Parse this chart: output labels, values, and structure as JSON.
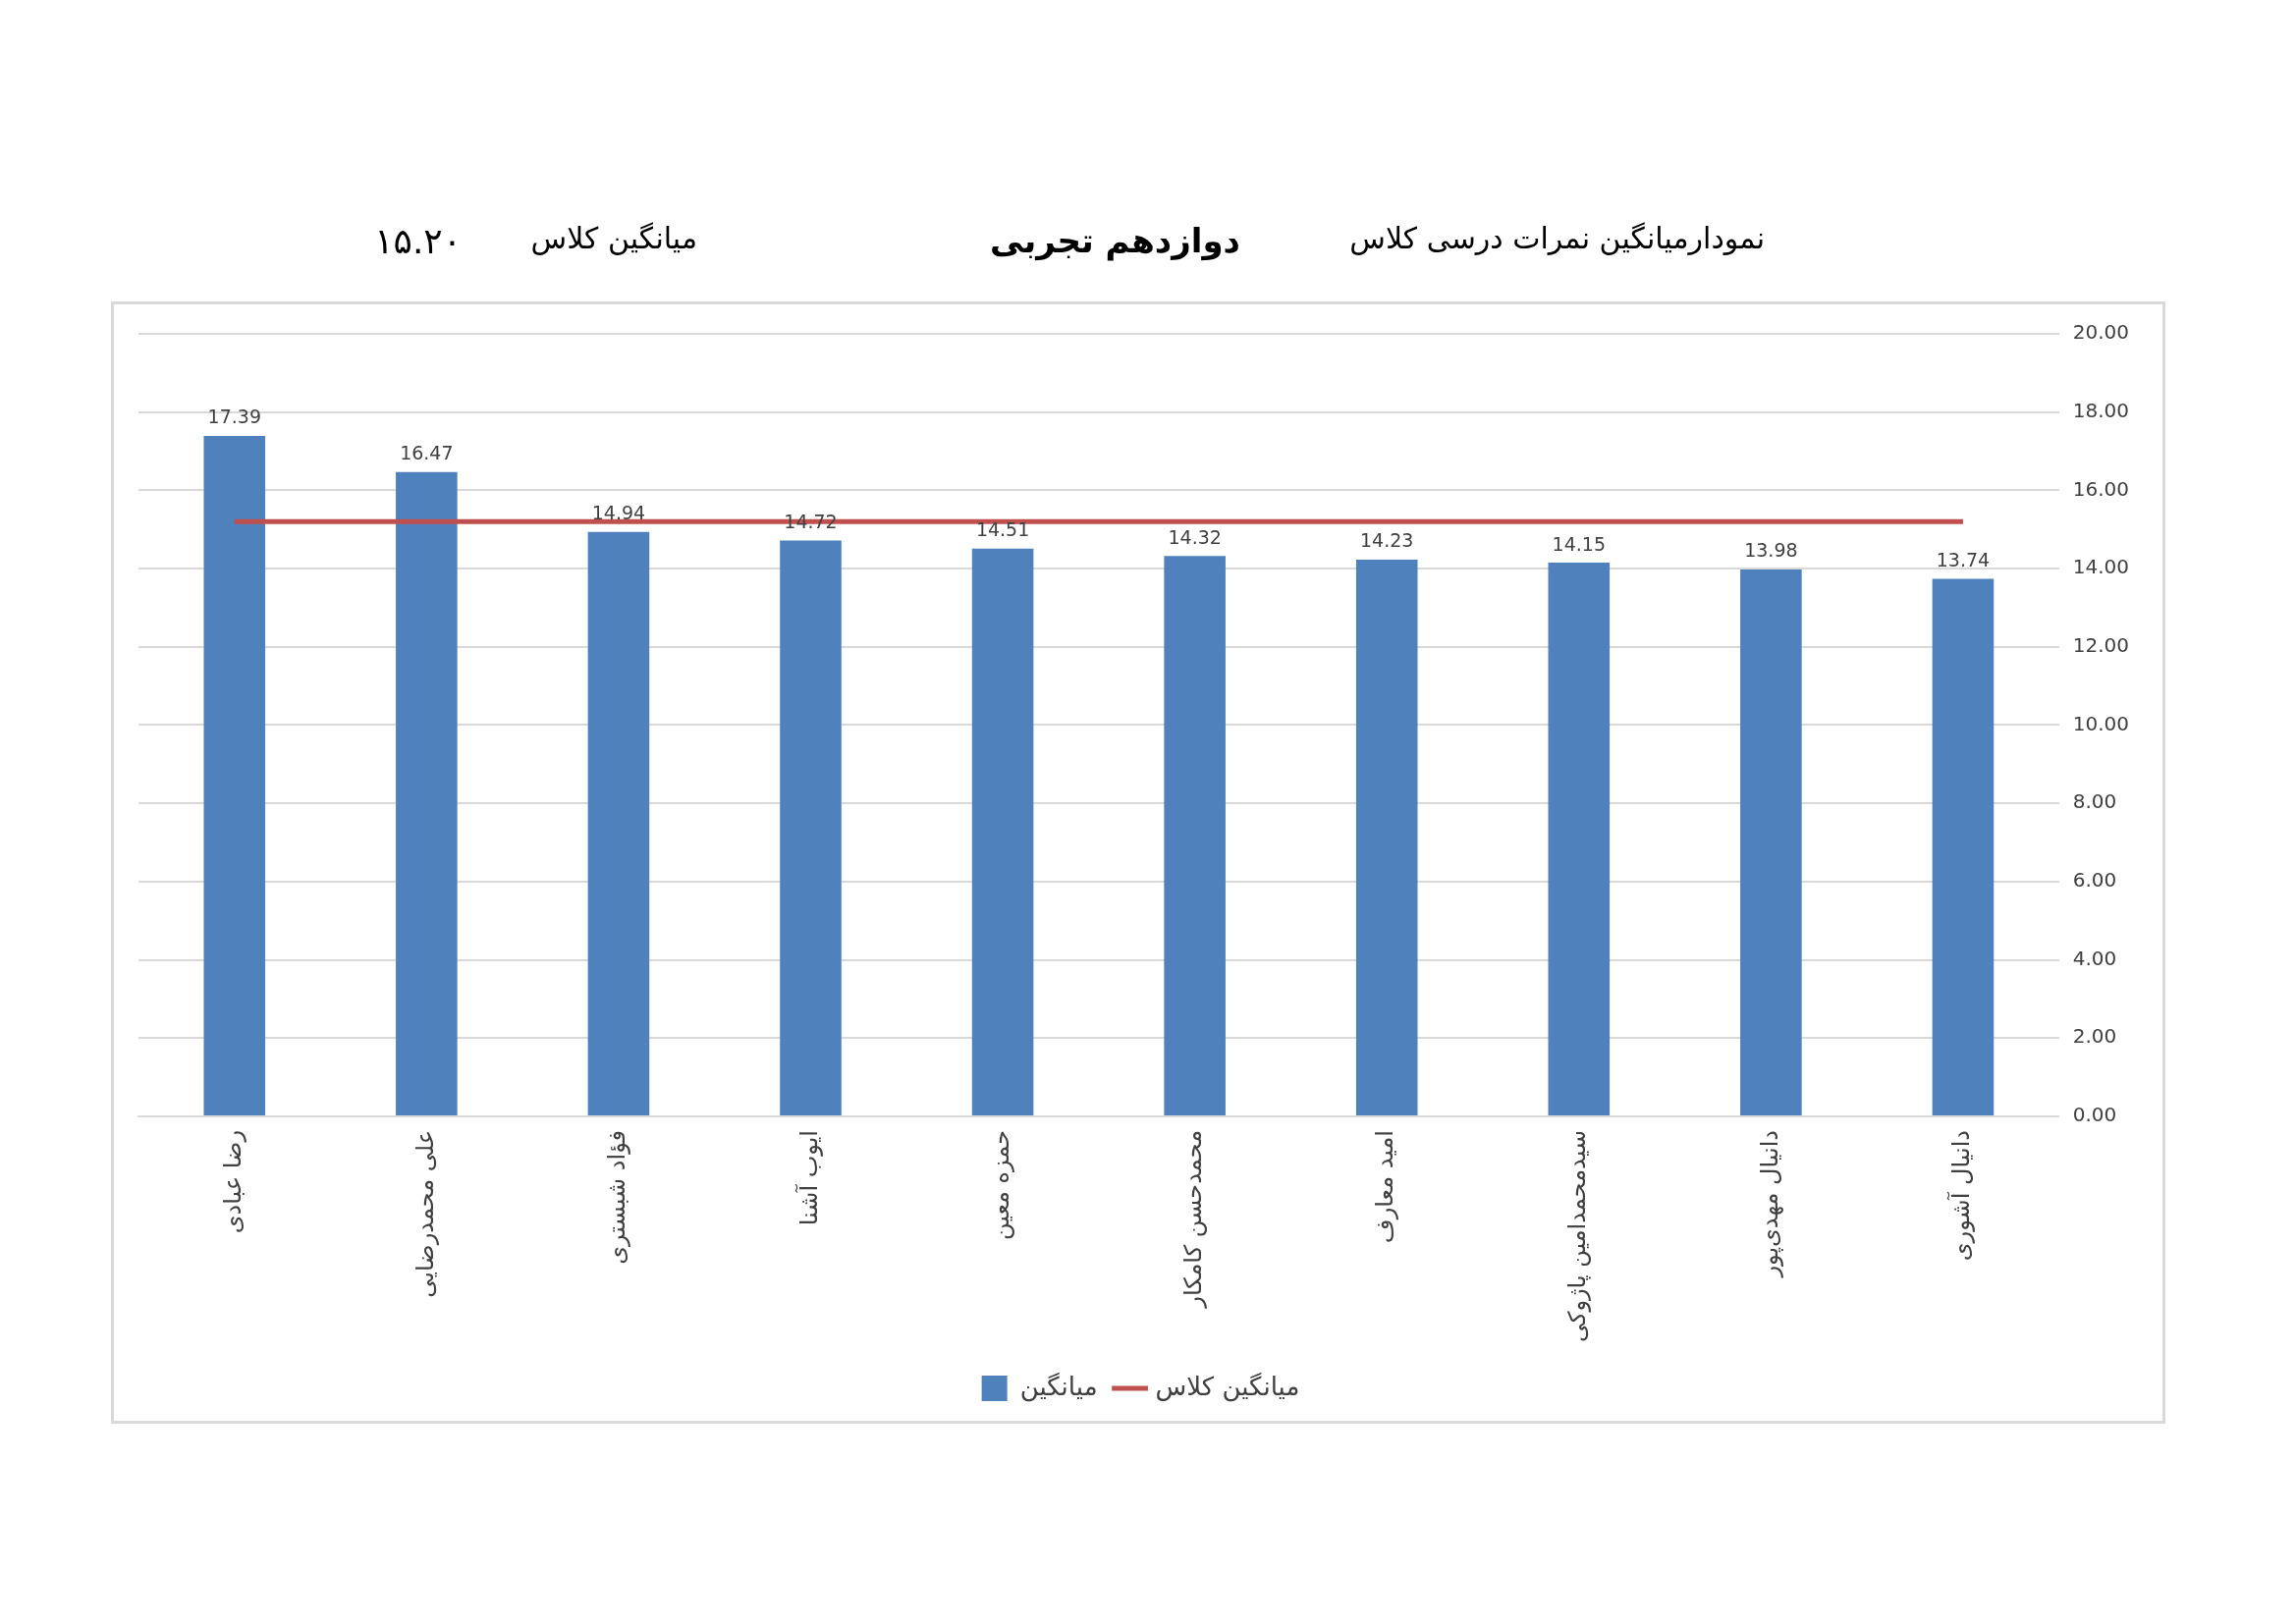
{
  "chart_data": {
    "type": "bar",
    "title": "نمودارمیانگین نمرات درسی  کلاس",
    "subtitle": "دوازدهم تجربی",
    "annotations": [
      "میانگین کلاس",
      "۱۵.۲۰"
    ],
    "categories": [
      "رضا عبادی",
      "علی محمدرضایی",
      "فؤاد شبستری",
      "ایوب آشنا",
      "حمزه معین",
      "محمدحسن کامکار",
      "امید معارف",
      "سیدمحمدامین پاژوکی",
      "دانیال مهدی‌پور",
      "دانیال آشوری"
    ],
    "series": [
      {
        "name": "میانگین",
        "color": "#4f81bd",
        "values": [
          17.39,
          16.47,
          14.94,
          14.72,
          14.51,
          14.32,
          14.23,
          14.15,
          13.98,
          13.74
        ],
        "value_labels": [
          "17.39",
          "16.47",
          "14.94",
          "14.72",
          "14.51",
          "14.32",
          "14.23",
          "14.15",
          "13.98",
          "13.74"
        ]
      },
      {
        "name": "میانگین کلاس",
        "type": "line",
        "color": "#c0504d",
        "marker": "none",
        "values": [
          15.2,
          15.2,
          15.2,
          15.2,
          15.2,
          15.2,
          15.2,
          15.2,
          15.2,
          15.2
        ]
      }
    ],
    "ylim": [
      0,
      20
    ],
    "yticks": [
      {
        "value": 0,
        "label": "0.00"
      },
      {
        "value": 2,
        "label": "2.00"
      },
      {
        "value": 4,
        "label": "4.00"
      },
      {
        "value": 6,
        "label": "6.00"
      },
      {
        "value": 8,
        "label": "8.00"
      },
      {
        "value": 10,
        "label": "10.00"
      },
      {
        "value": 12,
        "label": "12.00"
      },
      {
        "value": 14,
        "label": "14.00"
      },
      {
        "value": 16,
        "label": "16.00"
      },
      {
        "value": 18,
        "label": "18.00"
      },
      {
        "value": 20,
        "label": "20.00"
      }
    ],
    "grid": "y",
    "legend": "bottom"
  }
}
